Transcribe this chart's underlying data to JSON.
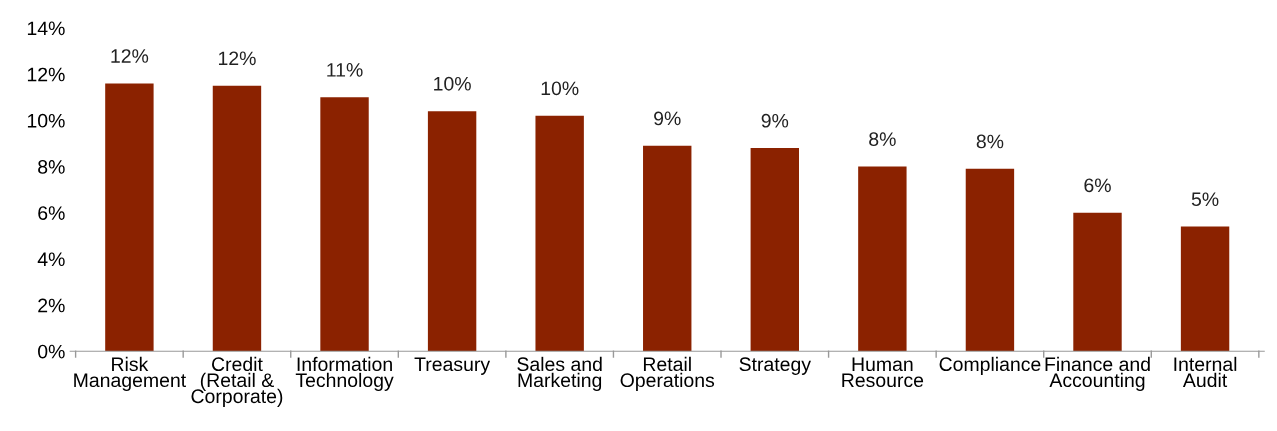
{
  "chart_data": {
    "type": "bar",
    "categories": [
      "Risk\nManagement",
      "Credit\n(Retail &\nCorporate)",
      "Information\nTechnology",
      "Treasury",
      "Sales and\nMarketing",
      "Retail\nOperations",
      "Strategy",
      "Human\nResource",
      "Compliance",
      "Finance and\nAccounting",
      "Internal\nAudit"
    ],
    "values": [
      11.6,
      11.5,
      11.0,
      10.4,
      10.2,
      8.9,
      8.8,
      8.0,
      7.9,
      6.0,
      5.4
    ],
    "value_labels": [
      "12%",
      "12%",
      "11%",
      "10%",
      "10%",
      "9%",
      "9%",
      "8%",
      "8%",
      "6%",
      "5%"
    ],
    "color": "#8b2200",
    "ylim": [
      0,
      14
    ],
    "yticks": [
      {
        "value": 0,
        "label": "0%"
      },
      {
        "value": 2,
        "label": "2%"
      },
      {
        "value": 4,
        "label": "4%"
      },
      {
        "value": 6,
        "label": "6%"
      },
      {
        "value": 8,
        "label": "8%"
      },
      {
        "value": 10,
        "label": "10%"
      },
      {
        "value": 12,
        "label": "12%"
      },
      {
        "value": 14,
        "label": "14%"
      }
    ],
    "grid": false,
    "legend": false
  }
}
